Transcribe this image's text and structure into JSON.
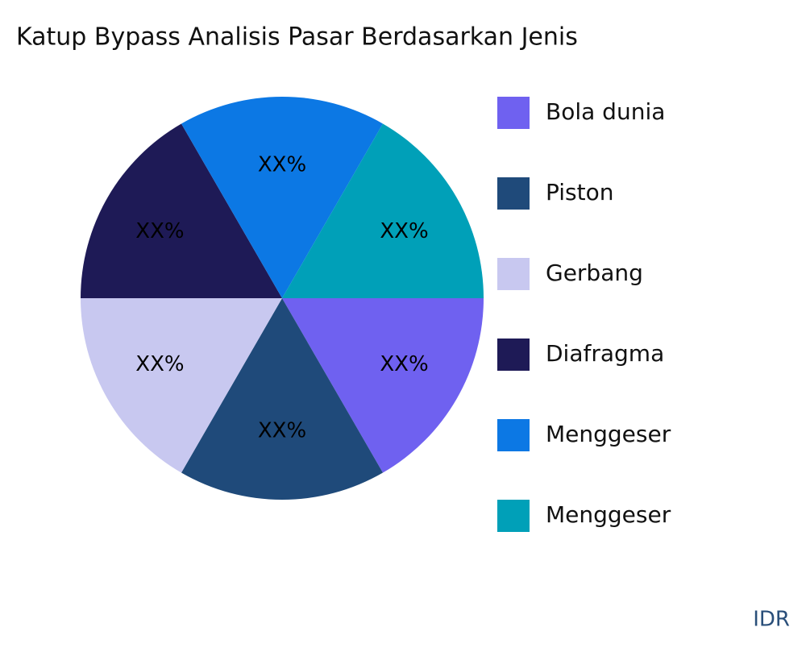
{
  "chart_data": {
    "type": "pie",
    "title": "Katup Bypass Analisis Pasar Berdasarkan Jenis",
    "categories": [
      "Bola dunia",
      "Piston",
      "Gerbang",
      "Diafragma",
      "Menggeser",
      "Menggeser"
    ],
    "values": [
      16.7,
      16.7,
      16.7,
      16.7,
      16.7,
      16.7
    ],
    "value_labels": [
      "XX%",
      "XX%",
      "XX%",
      "XX%",
      "XX%",
      "XX%"
    ],
    "colors": [
      "#6f61f0",
      "#1f4a7a",
      "#c8c8f0",
      "#1e1a56",
      "#0c78e4",
      "#00a0b8"
    ],
    "legend": "right"
  },
  "watermark": "IDR"
}
